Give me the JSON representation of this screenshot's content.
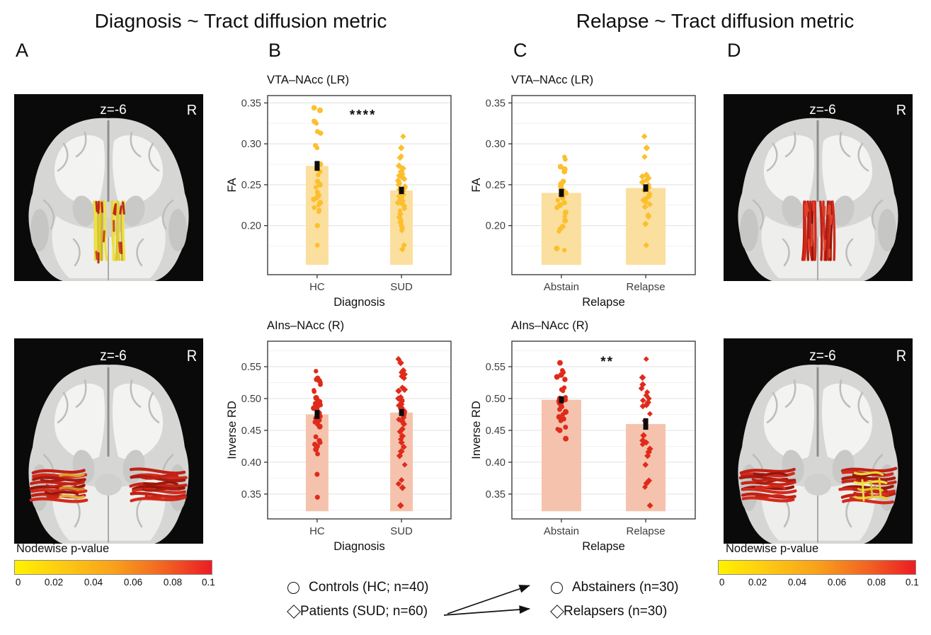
{
  "figure": {
    "titles": {
      "left": "Diagnosis ~ Tract diffusion metric",
      "right": "Relapse ~ Tract diffusion metric"
    },
    "panel_labels": {
      "a": "A",
      "b": "B",
      "c": "C",
      "d": "D"
    }
  },
  "brain_panels": [
    {
      "id": "a_top",
      "slice_label": "z=-6",
      "orientation_label": "R",
      "tract": "VTA-NAcc (LR)",
      "tract_style": "central",
      "tract_palette": "yellow_red"
    },
    {
      "id": "a_bottom",
      "slice_label": "z=-6",
      "orientation_label": "R",
      "tract": "AIns-NAcc",
      "tract_style": "bilateral",
      "tract_palette": "red_with_left_orange"
    },
    {
      "id": "d_top",
      "slice_label": "z=-6",
      "orientation_label": "R",
      "tract": "VTA-NAcc (LR)",
      "tract_style": "central",
      "tract_palette": "red"
    },
    {
      "id": "d_bottom",
      "slice_label": "z=-6",
      "orientation_label": "R",
      "tract": "AIns-NAcc",
      "tract_style": "bilateral",
      "tract_palette": "red_with_right_yellow"
    }
  ],
  "colorbar": {
    "label": "Nodewise p-value",
    "ticks": [
      "0",
      "0.02",
      "0.04",
      "0.06",
      "0.08",
      "0.1"
    ],
    "gradient": [
      "#FFF200",
      "#FDC913",
      "#F9A11B",
      "#F26522",
      "#EC1C24"
    ]
  },
  "legend": {
    "left_items": [
      {
        "shape": "circle",
        "label": "Controls (HC; n=40)"
      },
      {
        "shape": "diamond",
        "label": "Patients (SUD; n=60)"
      }
    ],
    "right_items": [
      {
        "shape": "circle",
        "label": "Abstainers (n=30)"
      },
      {
        "shape": "diamond",
        "label": "Relapsers (n=30)"
      }
    ]
  },
  "chart_data": [
    {
      "id": "b_top",
      "type": "bar",
      "title": "VTA–NAcc (LR)",
      "xlabel": "Diagnosis",
      "ylabel": "FA",
      "categories": [
        "HC",
        "SUD"
      ],
      "shapes": [
        "circle",
        "diamond"
      ],
      "bars": [
        0.273,
        0.243
      ],
      "errors": [
        0.006,
        0.0045
      ],
      "yticks": [
        0.2,
        0.25,
        0.3,
        0.35
      ],
      "ylim": [
        0.14,
        0.359
      ],
      "bar_base": 0.152,
      "significance": "****",
      "significance_y": 0.335,
      "bar_color": "#FBDF9E",
      "point_color": "#FCBF2D",
      "points": [
        [
          0.344,
          0.341,
          0.328,
          0.327,
          0.325,
          0.315,
          0.313,
          0.298,
          0.295,
          0.275,
          0.27,
          0.266,
          0.262,
          0.254,
          0.25,
          0.247,
          0.241,
          0.237,
          0.234,
          0.232,
          0.228,
          0.225,
          0.222,
          0.219,
          0.217,
          0.2,
          0.176
        ],
        [
          0.309,
          0.295,
          0.285,
          0.283,
          0.273,
          0.27,
          0.266,
          0.263,
          0.261,
          0.259,
          0.257,
          0.255,
          0.252,
          0.25,
          0.248,
          0.246,
          0.244,
          0.242,
          0.24,
          0.238,
          0.236,
          0.234,
          0.232,
          0.23,
          0.228,
          0.226,
          0.224,
          0.221,
          0.218,
          0.214,
          0.21,
          0.207,
          0.204,
          0.2,
          0.197,
          0.194,
          0.176,
          0.171
        ]
      ]
    },
    {
      "id": "b_bottom",
      "type": "bar",
      "title": "AIns–NAcc (R)",
      "xlabel": "Diagnosis",
      "ylabel": "Inverse RD",
      "categories": [
        "HC",
        "SUD"
      ],
      "shapes": [
        "circle",
        "diamond"
      ],
      "bars": [
        0.475,
        0.478
      ],
      "errors": [
        0.007,
        0.0055
      ],
      "yticks": [
        0.35,
        0.4,
        0.45,
        0.5,
        0.55
      ],
      "ylim": [
        0.311,
        0.59
      ],
      "bar_base": 0.323,
      "significance": null,
      "significance_y": null,
      "bar_color": "#F5C3AD",
      "point_color": "#DF2B1B",
      "points": [
        [
          0.543,
          0.532,
          0.53,
          0.528,
          0.525,
          0.522,
          0.513,
          0.511,
          0.501,
          0.499,
          0.497,
          0.495,
          0.492,
          0.49,
          0.487,
          0.485,
          0.482,
          0.48,
          0.477,
          0.475,
          0.472,
          0.469,
          0.466,
          0.463,
          0.46,
          0.456,
          0.44,
          0.434,
          0.431,
          0.428,
          0.425,
          0.42,
          0.413,
          0.381,
          0.345
        ],
        [
          0.562,
          0.556,
          0.544,
          0.541,
          0.538,
          0.535,
          0.532,
          0.517,
          0.514,
          0.512,
          0.502,
          0.5,
          0.498,
          0.496,
          0.494,
          0.491,
          0.489,
          0.486,
          0.484,
          0.481,
          0.479,
          0.476,
          0.473,
          0.47,
          0.467,
          0.464,
          0.46,
          0.452,
          0.448,
          0.441,
          0.436,
          0.431,
          0.424,
          0.417,
          0.41,
          0.396,
          0.372,
          0.366,
          0.36,
          0.332
        ]
      ]
    },
    {
      "id": "c_top",
      "type": "bar",
      "title": "VTA–NAcc (LR)",
      "xlabel": "Relapse",
      "ylabel": "FA",
      "categories": [
        "Abstain",
        "Relapse"
      ],
      "shapes": [
        "circle",
        "diamond"
      ],
      "bars": [
        0.24,
        0.246
      ],
      "errors": [
        0.005,
        0.0045
      ],
      "yticks": [
        0.2,
        0.25,
        0.3,
        0.35
      ],
      "ylim": [
        0.14,
        0.359
      ],
      "bar_base": 0.152,
      "significance": null,
      "significance_y": null,
      "bar_color": "#FBDF9E",
      "point_color": "#FCBF2D",
      "points": [
        [
          0.284,
          0.281,
          0.272,
          0.269,
          0.266,
          0.254,
          0.251,
          0.248,
          0.243,
          0.24,
          0.237,
          0.234,
          0.231,
          0.228,
          0.225,
          0.222,
          0.216,
          0.211,
          0.206,
          0.199,
          0.196,
          0.193,
          0.172,
          0.17
        ],
        [
          0.309,
          0.295,
          0.284,
          0.262,
          0.26,
          0.258,
          0.256,
          0.253,
          0.25,
          0.247,
          0.243,
          0.239,
          0.236,
          0.234,
          0.231,
          0.229,
          0.226,
          0.223,
          0.213,
          0.211,
          0.202,
          0.176
        ]
      ]
    },
    {
      "id": "c_bottom",
      "type": "bar",
      "title": "AIns–NAcc (R)",
      "xlabel": "Relapse",
      "ylabel": "Inverse RD",
      "categories": [
        "Abstain",
        "Relapse"
      ],
      "shapes": [
        "circle",
        "diamond"
      ],
      "bars": [
        0.498,
        0.46
      ],
      "errors": [
        0.0055,
        0.009
      ],
      "yticks": [
        0.35,
        0.4,
        0.45,
        0.5,
        0.55
      ],
      "ylim": [
        0.311,
        0.59
      ],
      "bar_base": 0.323,
      "significance": "**",
      "significance_y": 0.558,
      "bar_color": "#F5C3AD",
      "point_color": "#DF2B1B",
      "points": [
        [
          0.556,
          0.544,
          0.541,
          0.537,
          0.534,
          0.53,
          0.517,
          0.514,
          0.512,
          0.502,
          0.5,
          0.498,
          0.496,
          0.493,
          0.49,
          0.487,
          0.483,
          0.479,
          0.475,
          0.471,
          0.468,
          0.465,
          0.455,
          0.452,
          0.45,
          0.437
        ],
        [
          0.562,
          0.533,
          0.522,
          0.516,
          0.51,
          0.505,
          0.5,
          0.497,
          0.494,
          0.49,
          0.488,
          0.476,
          0.465,
          0.442,
          0.434,
          0.431,
          0.428,
          0.421,
          0.416,
          0.41,
          0.396,
          0.371,
          0.367,
          0.361,
          0.332
        ]
      ]
    }
  ]
}
